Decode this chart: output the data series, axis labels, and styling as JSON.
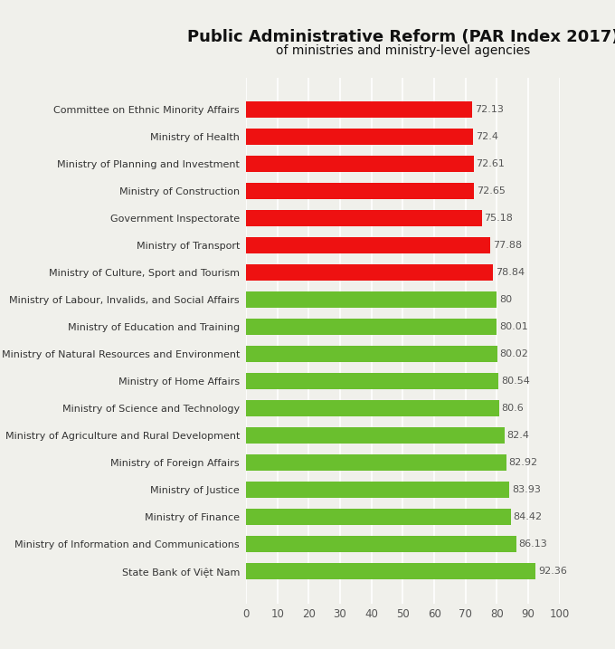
{
  "title_line1": "Public Administrative Reform (PAR Index 2017)",
  "title_line2": "of ministries and ministry-level agencies",
  "categories": [
    "Committee on Ethnic Minority Affairs",
    "Ministry of Health",
    "Ministry of Planning and Investment",
    "Ministry of Construction",
    "Government Inspectorate",
    "Ministry of Transport",
    "Ministry of Culture, Sport and Tourism",
    "Ministry of Labour, Invalids, and Social Affairs",
    "Ministry of Education and Training",
    "Ministry of Natural Resources and Environment",
    "Ministry of Home Affairs",
    "Ministry of Science and Technology",
    "Ministry of Agriculture and Rural Development",
    "Ministry of Foreign Affairs",
    "Ministry of Justice",
    "Ministry of Finance",
    "Ministry of Information and Communications",
    "State Bank of Việt Nam"
  ],
  "values": [
    72.13,
    72.4,
    72.61,
    72.65,
    75.18,
    77.88,
    78.84,
    80.0,
    80.01,
    80.02,
    80.54,
    80.6,
    82.4,
    82.92,
    83.93,
    84.42,
    86.13,
    92.36
  ],
  "colors": [
    "#ee1111",
    "#ee1111",
    "#ee1111",
    "#ee1111",
    "#ee1111",
    "#ee1111",
    "#ee1111",
    "#6abf2e",
    "#6abf2e",
    "#6abf2e",
    "#6abf2e",
    "#6abf2e",
    "#6abf2e",
    "#6abf2e",
    "#6abf2e",
    "#6abf2e",
    "#6abf2e",
    "#6abf2e"
  ],
  "xlim": [
    0,
    100
  ],
  "xticks": [
    0,
    10,
    20,
    30,
    40,
    50,
    60,
    70,
    80,
    90,
    100
  ],
  "background_color": "#f0f0eb",
  "bar_height": 0.6,
  "title_fontsize": 13,
  "subtitle_fontsize": 10,
  "label_fontsize": 8,
  "value_fontsize": 8,
  "tick_fontsize": 8.5
}
